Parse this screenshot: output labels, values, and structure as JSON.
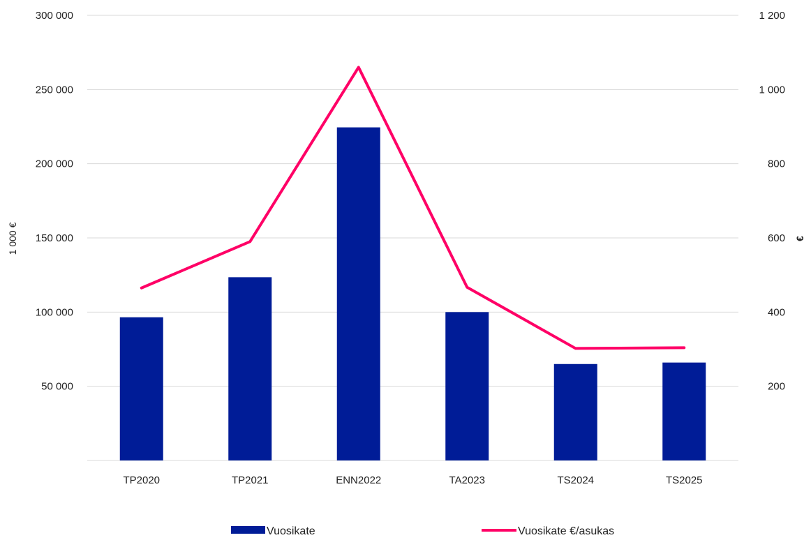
{
  "chart_data": {
    "type": "bar",
    "categories": [
      "TP2020",
      "TP2021",
      "ENN2022",
      "TA2023",
      "TS2024",
      "TS2025"
    ],
    "series": [
      {
        "name": "Vuosikate",
        "type": "bar",
        "axis": "left",
        "color": "#001c97",
        "values": [
          96500,
          123500,
          224500,
          100000,
          65000,
          66000
        ]
      },
      {
        "name": "Vuosikate €/asukas",
        "type": "line",
        "axis": "right",
        "color": "#ff0066",
        "values": [
          465,
          590,
          1060,
          467,
          302,
          304
        ]
      }
    ],
    "ylabel_left": "1 000 €",
    "ylabel_right": "€",
    "ylim_left": [
      0,
      300000
    ],
    "ylim_right": [
      0,
      1200
    ],
    "yticks_left": [
      "50 000",
      "100 000",
      "150 000",
      "200 000",
      "250 000",
      "300 000"
    ],
    "yticks_right": [
      "200",
      "400",
      "600",
      "800",
      "1 000",
      "1 200"
    ],
    "grid": true,
    "legend_position": "bottom"
  }
}
